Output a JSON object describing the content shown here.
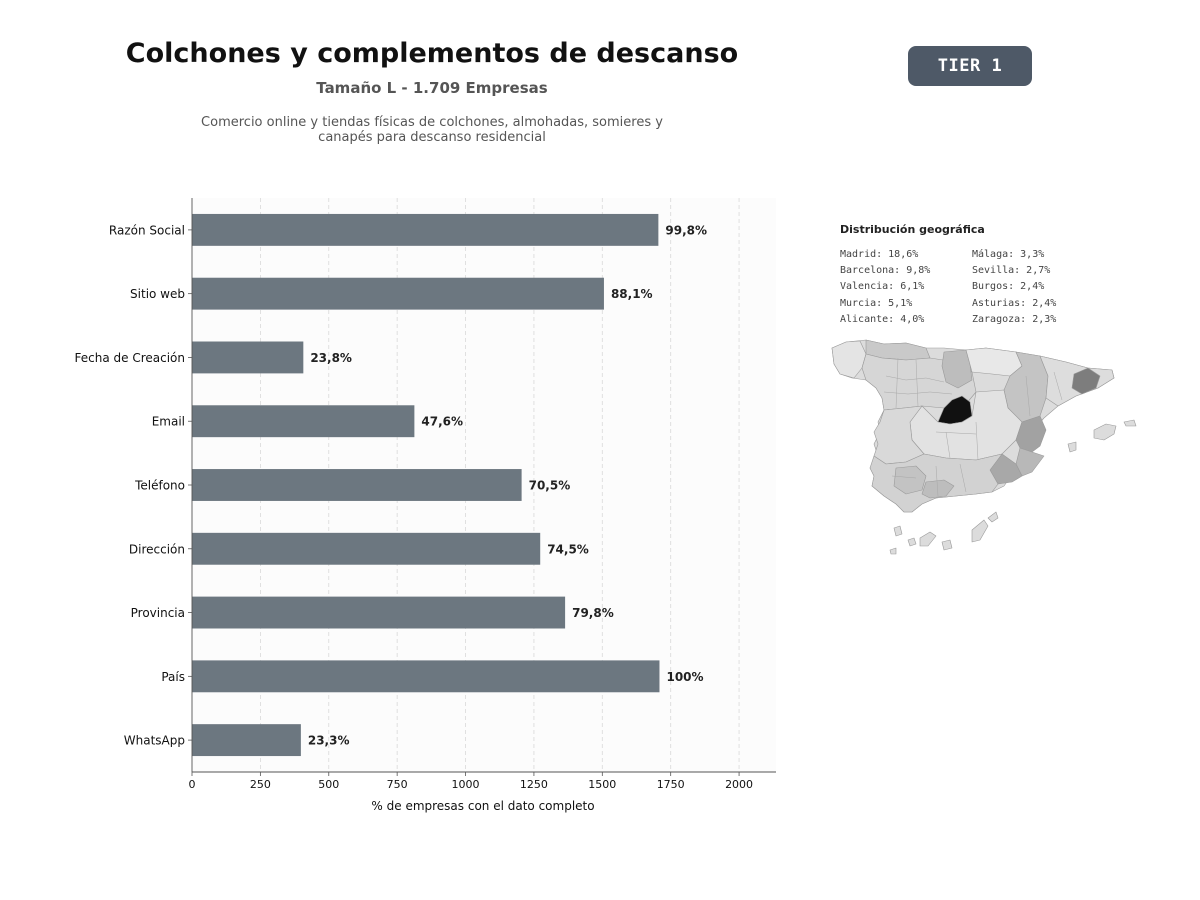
{
  "header": {
    "title": "Colchones y complementos de descanso",
    "subtitle": "Tamaño L - 1.709 Empresas",
    "description_line1": "Comercio online y tiendas físicas de colchones, almohadas, somieres y",
    "description_line2": "canapés para descanso residencial",
    "tier_badge": "TIER 1"
  },
  "chart_data": {
    "type": "bar",
    "orientation": "horizontal",
    "categories": [
      "Razón Social",
      "Sitio web",
      "Fecha de Creación",
      "Email",
      "Teléfono",
      "Dirección",
      "Provincia",
      "País",
      "WhatsApp"
    ],
    "values": [
      1705,
      1506,
      407,
      813,
      1205,
      1273,
      1364,
      1709,
      398
    ],
    "labels": [
      "99,8%",
      "88,1%",
      "23,8%",
      "47,6%",
      "70,5%",
      "74,5%",
      "79,8%",
      "100%",
      "23,3%"
    ],
    "xlabel": "% de empresas con el dato completo",
    "xlim": [
      0,
      2135
    ],
    "xticks": [
      0,
      250,
      500,
      750,
      1000,
      1250,
      1500,
      1750,
      2000
    ],
    "grid": "vertical dashed",
    "bar_color": "#6c7780"
  },
  "geo": {
    "title": "Distribución geográfica",
    "col1": [
      "Madrid: 18,6%",
      "Barcelona: 9,8%",
      "Valencia: 6,1%",
      "Murcia: 5,1%",
      "Alicante: 4,0%"
    ],
    "col2": [
      "Málaga: 3,3%",
      "Sevilla: 2,7%",
      "Burgos: 2,4%",
      "Asturias: 2,4%",
      "Zaragoza: 2,3%"
    ]
  },
  "colors": {
    "badge": "#4e5967",
    "map_high": "#111111",
    "map_mid": "#7a7a7a",
    "map_low": "#dcdcdc"
  }
}
